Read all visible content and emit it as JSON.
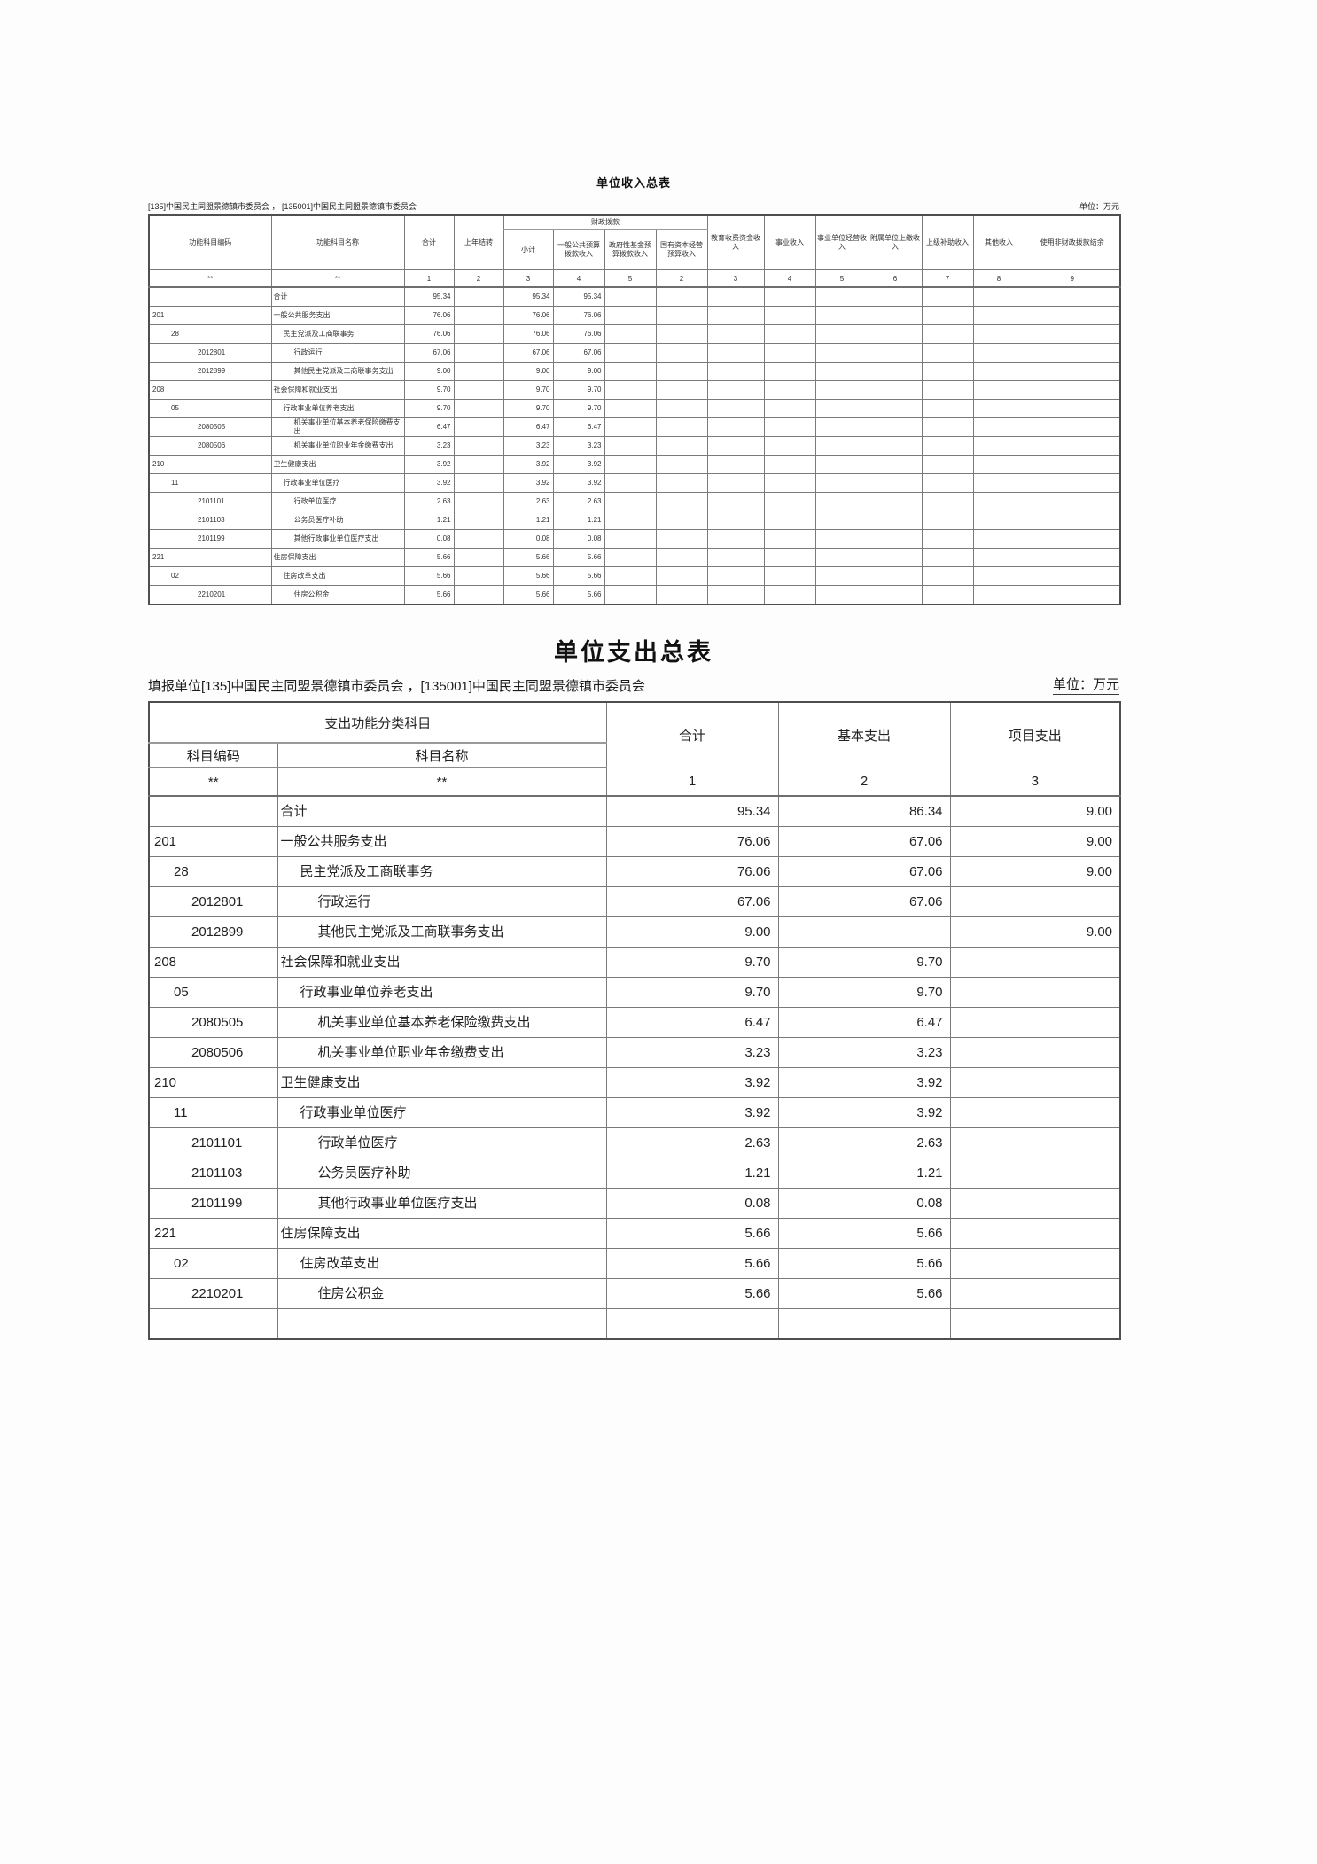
{
  "income": {
    "title": "单位收入总表",
    "subtitle": "[135]中国民主同盟景德镇市委员会 ， [135001]中国民主同盟景德镇市委员会",
    "unit_label": "单位：万元",
    "headers": {
      "code": "功能科目编码",
      "name": "功能科目名称",
      "total": "合计",
      "carryover": "上年结转",
      "fiscal": "财政拨款",
      "fiscal_sub": [
        "小计",
        "一般公共预算拨款收入",
        "政府性基金预算拨款收入",
        "国有资本经营预算收入"
      ],
      "others": [
        "教育收费资金收入",
        "事业收入",
        "事业单位经营收入",
        "附属单位上缴收入",
        "上级补助收入",
        "其他收入",
        "使用非财政拨款结余"
      ]
    },
    "col_nums": [
      "**",
      "**",
      "1",
      "2",
      "3",
      "4",
      "5",
      "2",
      "3",
      "4",
      "5",
      "6",
      "7",
      "8",
      "9"
    ],
    "rows": [
      {
        "c": "",
        "n": "合计",
        "i": 0,
        "v": [
          "95.34",
          "",
          "95.34",
          "95.34",
          "",
          "",
          "",
          "",
          "",
          "",
          "",
          "",
          ""
        ]
      },
      {
        "c": "201",
        "n": "一般公共服务支出",
        "i": 0,
        "v": [
          "76.06",
          "",
          "76.06",
          "76.06",
          "",
          "",
          "",
          "",
          "",
          "",
          "",
          "",
          ""
        ]
      },
      {
        "c": "28",
        "n": "民主党派及工商联事务",
        "i": 1,
        "v": [
          "76.06",
          "",
          "76.06",
          "76.06",
          "",
          "",
          "",
          "",
          "",
          "",
          "",
          "",
          ""
        ]
      },
      {
        "c": "2012801",
        "n": "行政运行",
        "i": 2,
        "v": [
          "67.06",
          "",
          "67.06",
          "67.06",
          "",
          "",
          "",
          "",
          "",
          "",
          "",
          "",
          ""
        ]
      },
      {
        "c": "2012899",
        "n": "其他民主党派及工商联事务支出",
        "i": 2,
        "v": [
          "9.00",
          "",
          "9.00",
          "9.00",
          "",
          "",
          "",
          "",
          "",
          "",
          "",
          "",
          ""
        ]
      },
      {
        "c": "208",
        "n": "社会保障和就业支出",
        "i": 0,
        "v": [
          "9.70",
          "",
          "9.70",
          "9.70",
          "",
          "",
          "",
          "",
          "",
          "",
          "",
          "",
          ""
        ]
      },
      {
        "c": "05",
        "n": "行政事业单位养老支出",
        "i": 1,
        "v": [
          "9.70",
          "",
          "9.70",
          "9.70",
          "",
          "",
          "",
          "",
          "",
          "",
          "",
          "",
          ""
        ]
      },
      {
        "c": "2080505",
        "n": "机关事业单位基本养老保险缴费支出",
        "i": 2,
        "v": [
          "6.47",
          "",
          "6.47",
          "6.47",
          "",
          "",
          "",
          "",
          "",
          "",
          "",
          "",
          ""
        ]
      },
      {
        "c": "2080506",
        "n": "机关事业单位职业年金缴费支出",
        "i": 2,
        "v": [
          "3.23",
          "",
          "3.23",
          "3.23",
          "",
          "",
          "",
          "",
          "",
          "",
          "",
          "",
          ""
        ]
      },
      {
        "c": "210",
        "n": "卫生健康支出",
        "i": 0,
        "v": [
          "3.92",
          "",
          "3.92",
          "3.92",
          "",
          "",
          "",
          "",
          "",
          "",
          "",
          "",
          ""
        ]
      },
      {
        "c": "11",
        "n": "行政事业单位医疗",
        "i": 1,
        "v": [
          "3.92",
          "",
          "3.92",
          "3.92",
          "",
          "",
          "",
          "",
          "",
          "",
          "",
          "",
          ""
        ]
      },
      {
        "c": "2101101",
        "n": "行政单位医疗",
        "i": 2,
        "v": [
          "2.63",
          "",
          "2.63",
          "2.63",
          "",
          "",
          "",
          "",
          "",
          "",
          "",
          "",
          ""
        ]
      },
      {
        "c": "2101103",
        "n": "公务员医疗补助",
        "i": 2,
        "v": [
          "1.21",
          "",
          "1.21",
          "1.21",
          "",
          "",
          "",
          "",
          "",
          "",
          "",
          "",
          ""
        ]
      },
      {
        "c": "2101199",
        "n": "其他行政事业单位医疗支出",
        "i": 2,
        "v": [
          "0.08",
          "",
          "0.08",
          "0.08",
          "",
          "",
          "",
          "",
          "",
          "",
          "",
          "",
          ""
        ]
      },
      {
        "c": "221",
        "n": "住房保障支出",
        "i": 0,
        "v": [
          "5.66",
          "",
          "5.66",
          "5.66",
          "",
          "",
          "",
          "",
          "",
          "",
          "",
          "",
          ""
        ]
      },
      {
        "c": "02",
        "n": "住房改革支出",
        "i": 1,
        "v": [
          "5.66",
          "",
          "5.66",
          "5.66",
          "",
          "",
          "",
          "",
          "",
          "",
          "",
          "",
          ""
        ]
      },
      {
        "c": "2210201",
        "n": "住房公积金",
        "i": 2,
        "v": [
          "5.66",
          "",
          "5.66",
          "5.66",
          "",
          "",
          "",
          "",
          "",
          "",
          "",
          "",
          ""
        ]
      }
    ]
  },
  "expense": {
    "title": "单位支出总表",
    "subtitle": "填报单位[135]中国民主同盟景德镇市委员会 ，[135001]中国民主同盟景德镇市委员会",
    "unit_label": "单位：万元",
    "headers": {
      "group": "支出功能分类科目",
      "code": "科目编码",
      "name": "科目名称",
      "total": "合计",
      "basic": "基本支出",
      "project": "项目支出"
    },
    "col_nums": [
      "**",
      "**",
      "1",
      "2",
      "3"
    ],
    "rows": [
      {
        "c": "",
        "n": "合计",
        "i": 0,
        "v": [
          "95.34",
          "86.34",
          "9.00"
        ]
      },
      {
        "c": "201",
        "n": "一般公共服务支出",
        "i": 0,
        "v": [
          "76.06",
          "67.06",
          "9.00"
        ]
      },
      {
        "c": "28",
        "n": "民主党派及工商联事务",
        "i": 1,
        "v": [
          "76.06",
          "67.06",
          "9.00"
        ]
      },
      {
        "c": "2012801",
        "n": "行政运行",
        "i": 2,
        "v": [
          "67.06",
          "67.06",
          ""
        ]
      },
      {
        "c": "2012899",
        "n": "其他民主党派及工商联事务支出",
        "i": 2,
        "v": [
          "9.00",
          "",
          "9.00"
        ]
      },
      {
        "c": "208",
        "n": "社会保障和就业支出",
        "i": 0,
        "v": [
          "9.70",
          "9.70",
          ""
        ]
      },
      {
        "c": "05",
        "n": "行政事业单位养老支出",
        "i": 1,
        "v": [
          "9.70",
          "9.70",
          ""
        ]
      },
      {
        "c": "2080505",
        "n": "机关事业单位基本养老保险缴费支出",
        "i": 2,
        "v": [
          "6.47",
          "6.47",
          ""
        ]
      },
      {
        "c": "2080506",
        "n": "机关事业单位职业年金缴费支出",
        "i": 2,
        "v": [
          "3.23",
          "3.23",
          ""
        ]
      },
      {
        "c": "210",
        "n": "卫生健康支出",
        "i": 0,
        "v": [
          "3.92",
          "3.92",
          ""
        ]
      },
      {
        "c": "11",
        "n": "行政事业单位医疗",
        "i": 1,
        "v": [
          "3.92",
          "3.92",
          ""
        ]
      },
      {
        "c": "2101101",
        "n": "行政单位医疗",
        "i": 2,
        "v": [
          "2.63",
          "2.63",
          ""
        ]
      },
      {
        "c": "2101103",
        "n": "公务员医疗补助",
        "i": 2,
        "v": [
          "1.21",
          "1.21",
          ""
        ]
      },
      {
        "c": "2101199",
        "n": "其他行政事业单位医疗支出",
        "i": 2,
        "v": [
          "0.08",
          "0.08",
          ""
        ]
      },
      {
        "c": "221",
        "n": "住房保障支出",
        "i": 0,
        "v": [
          "5.66",
          "5.66",
          ""
        ]
      },
      {
        "c": "02",
        "n": "住房改革支出",
        "i": 1,
        "v": [
          "5.66",
          "5.66",
          ""
        ]
      },
      {
        "c": "2210201",
        "n": "住房公积金",
        "i": 2,
        "v": [
          "5.66",
          "5.66",
          ""
        ]
      },
      {
        "c": "",
        "n": "",
        "i": 0,
        "v": [
          "",
          "",
          ""
        ]
      }
    ]
  }
}
